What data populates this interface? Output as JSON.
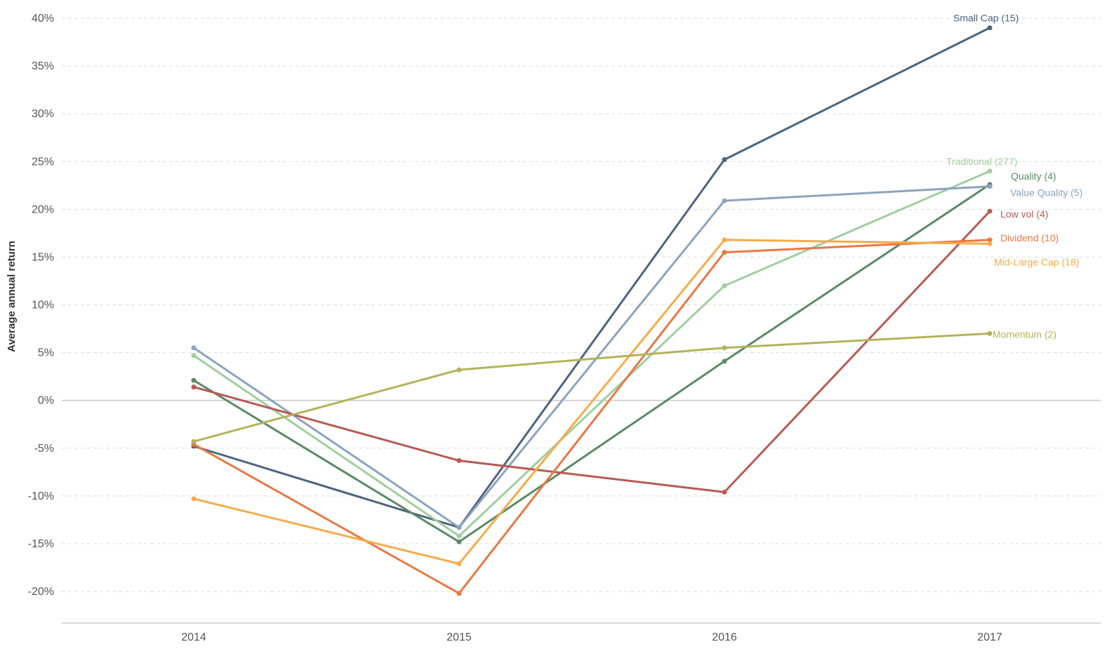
{
  "chart_data": {
    "type": "line",
    "title": "",
    "xlabel": "",
    "ylabel": "Average annual return",
    "x": [
      "2014",
      "2015",
      "2016",
      "2017"
    ],
    "yticks": [
      "40%",
      "35%",
      "30%",
      "25%",
      "20%",
      "15%",
      "10%",
      "5%",
      "0%",
      "-5%",
      "-10%",
      "-15%",
      "-20%"
    ],
    "ylim": [
      -23,
      40.5
    ],
    "grid": true,
    "legend": "end-of-line labels",
    "series": [
      {
        "name": "Small Cap (15)",
        "color": "#4f6380",
        "values": [
          -4.8,
          -13.3,
          25.2,
          39.0
        ]
      },
      {
        "name": "Traditional (277)",
        "color": "#9fcf9f",
        "values": [
          4.7,
          -14.2,
          12.0,
          24.0
        ]
      },
      {
        "name": "Quality (4)",
        "color": "#5a8a65",
        "values": [
          2.1,
          -14.8,
          4.1,
          22.6
        ]
      },
      {
        "name": "Value Quality (5)",
        "color": "#8ca3bd",
        "values": [
          5.5,
          -13.3,
          20.9,
          22.4
        ]
      },
      {
        "name": "Low vol (4)",
        "color": "#b85a55",
        "values": [
          1.4,
          -6.3,
          -9.6,
          19.8
        ]
      },
      {
        "name": "Dividend (10)",
        "color": "#ea7843",
        "values": [
          -4.6,
          -20.2,
          15.5,
          16.8
        ]
      },
      {
        "name": "Mid-Large Cap (18)",
        "color": "#f7ab4a",
        "values": [
          -10.3,
          -17.1,
          16.8,
          16.4
        ]
      },
      {
        "name": "Momentum (2)",
        "color": "#b4b35a",
        "values": [
          -4.3,
          3.2,
          5.5,
          7.0
        ]
      }
    ]
  }
}
